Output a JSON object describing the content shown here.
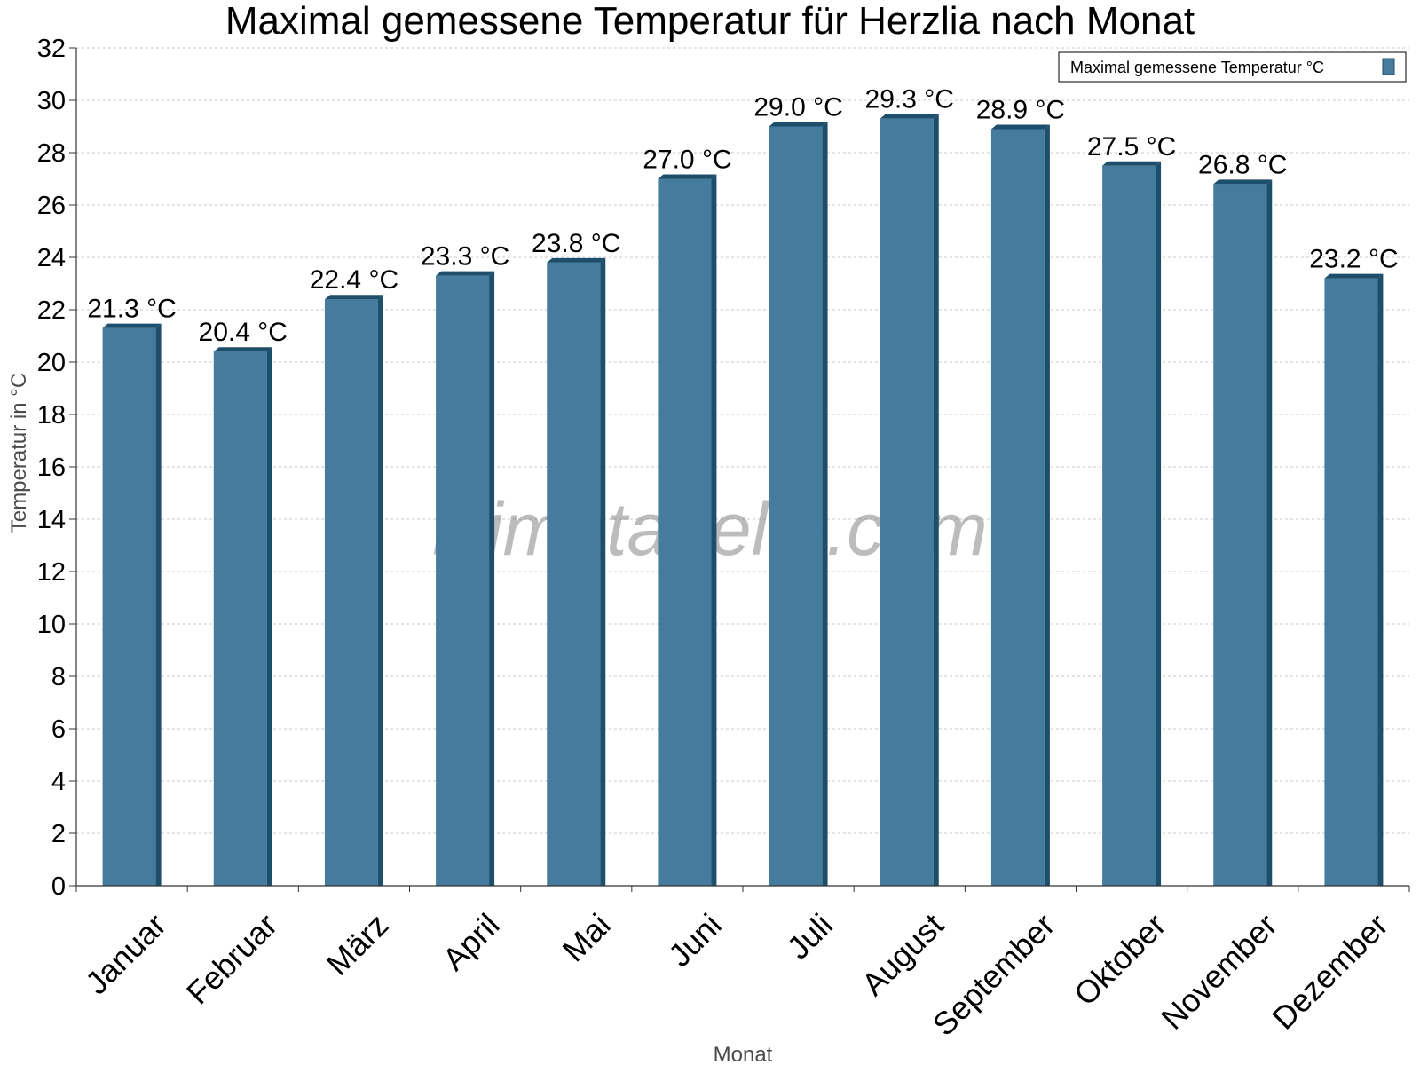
{
  "chart_data": {
    "type": "bar",
    "title": "Maximal gemessene Temperatur für Herzlia nach Monat",
    "xlabel": "Monat",
    "ylabel": "Temperatur in °C",
    "categories": [
      "Januar",
      "Februar",
      "März",
      "April",
      "Mai",
      "Juni",
      "Juli",
      "August",
      "September",
      "Oktober",
      "November",
      "Dezember"
    ],
    "series": [
      {
        "name": "Maximal gemessene Temperatur °C",
        "values": [
          21.3,
          20.4,
          22.4,
          23.3,
          23.8,
          27.0,
          29.0,
          29.3,
          28.9,
          27.5,
          26.8,
          23.2
        ],
        "labels": [
          "21.3 °C",
          "20.4 °C",
          "22.4 °C",
          "23.3 °C",
          "23.8 °C",
          "27.0 °C",
          "29.0 °C",
          "29.3 °C",
          "28.9 °C",
          "27.5 °C",
          "26.8 °C",
          "23.2 °C"
        ]
      }
    ],
    "ylim": [
      0,
      32
    ],
    "yticks": [
      "0",
      "2",
      "4",
      "6",
      "8",
      "10",
      "12",
      "14",
      "16",
      "18",
      "20",
      "22",
      "24",
      "26",
      "28",
      "30",
      "32"
    ],
    "grid": true,
    "legend_position": "top-right",
    "watermark": "klimatabelle.com",
    "colors": {
      "bar": "#457b9d",
      "bar_side": "#1d4e6b",
      "bar_top": "#1d4e6b",
      "grid": "#c8c8c8"
    }
  }
}
